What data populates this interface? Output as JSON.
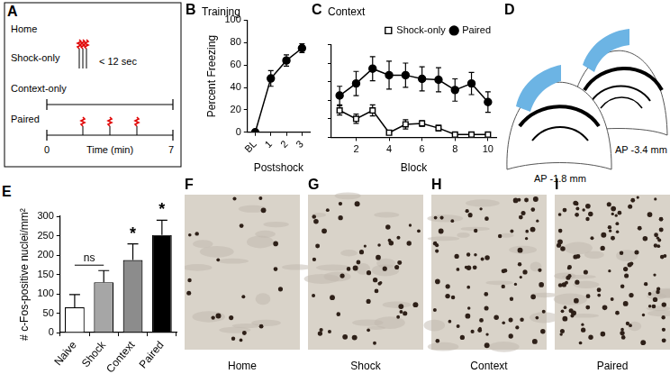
{
  "panel_labels": [
    "A",
    "B",
    "C",
    "D",
    "E",
    "F",
    "G",
    "H",
    "I"
  ],
  "protocol_diagram": {
    "rows": [
      {
        "label": "Home"
      },
      {
        "label": "Shock-only",
        "note": "< 12 sec",
        "shocks": 3
      },
      {
        "label": "Context-only"
      },
      {
        "label": "Paired",
        "shock_times_min": [
          2,
          3.5,
          5
        ]
      }
    ],
    "axis": {
      "start": 0,
      "end": 7,
      "label": "Time (min)"
    }
  },
  "chart_data": [
    {
      "type": "line",
      "title": "Training",
      "x_label": "Postshock",
      "y_label": "Percent Freezing",
      "categories": [
        "BL",
        "1",
        "2",
        "3"
      ],
      "values": [
        0,
        48,
        64,
        75
      ],
      "errors": [
        0,
        7,
        5,
        4
      ],
      "color": "#000000",
      "marker": "filled-circle",
      "ylim": [
        0,
        100
      ],
      "yticks": [
        0,
        20,
        40,
        60,
        80,
        100
      ],
      "grid": false
    },
    {
      "type": "line",
      "title": "Context",
      "x_label": "Block",
      "x": [
        1,
        2,
        3,
        4,
        5,
        6,
        7,
        8,
        9,
        10
      ],
      "xlim": [
        0.5,
        10.5
      ],
      "xticks": [
        2,
        4,
        6,
        8,
        10
      ],
      "ylim": [
        0,
        100
      ],
      "yticks": [
        0,
        20,
        40,
        60,
        80,
        100
      ],
      "tick_labels": "x",
      "grid": false,
      "legend": "top",
      "series": [
        {
          "name": "Shock-only",
          "color": "#000000",
          "marker": "open-square",
          "values": [
            29,
            20,
            29,
            5,
            14,
            15,
            10,
            3,
            3,
            3
          ],
          "errors": [
            5,
            5,
            6,
            2,
            5,
            3,
            3,
            1,
            1,
            1
          ]
        },
        {
          "name": "Paired",
          "color": "#000000",
          "marker": "filled-circle",
          "values": [
            45,
            58,
            74,
            67,
            67,
            63,
            62,
            51,
            58,
            38
          ],
          "errors": [
            10,
            13,
            13,
            15,
            13,
            13,
            13,
            12,
            12,
            11
          ]
        }
      ]
    },
    {
      "type": "bar",
      "y_label": "# c-Fos-positive nuclei/mm²",
      "categories": [
        "Naive",
        "Shock",
        "Context",
        "Paired"
      ],
      "values": [
        65,
        130,
        187,
        252
      ],
      "errors": [
        33,
        30,
        42,
        38
      ],
      "colors": [
        "#ffffff",
        "#a6a6a6",
        "#8c8c8c",
        "#000000"
      ],
      "ylim": [
        0,
        300
      ],
      "yticks": [
        0,
        50,
        100,
        150,
        200,
        250,
        300
      ],
      "grid": false,
      "annotations": [
        {
          "text": "ns",
          "categories": [
            "Naive",
            "Shock"
          ]
        },
        {
          "text": "*",
          "categories": [
            "Context"
          ]
        },
        {
          "text": "*",
          "categories": [
            "Paired"
          ]
        }
      ]
    }
  ],
  "atlas": {
    "sections": [
      {
        "label": "AP -1.8 mm"
      },
      {
        "label": "AP -3.4 mm"
      }
    ]
  },
  "micrographs": [
    {
      "label": "Home"
    },
    {
      "label": "Shock"
    },
    {
      "label": "Context"
    },
    {
      "label": "Paired"
    }
  ]
}
